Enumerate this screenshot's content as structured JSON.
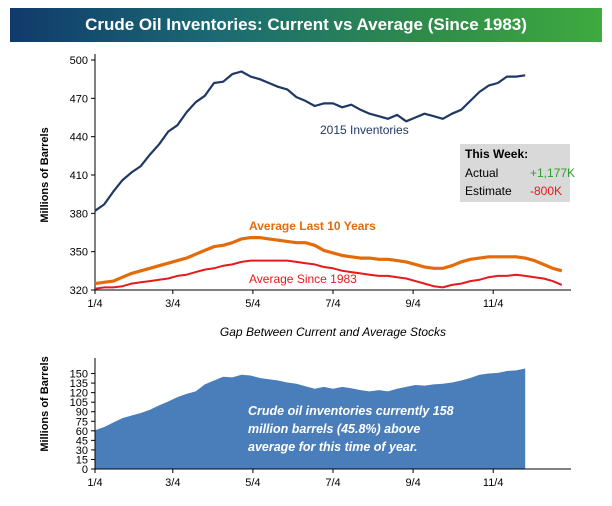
{
  "title": "Crude Oil Inventories: Current vs Average (Since 1983)",
  "colors": {
    "current": "#1f3864",
    "avg10": "#e36c09",
    "avg1983": "#e41a1c",
    "gap_fill": "#4a7ebb",
    "positive": "#2ca02c",
    "negative": "#e41a1c",
    "legend_box": "#d9d9d9"
  },
  "this_week": {
    "heading": "This Week:",
    "actual_label": "Actual",
    "actual_value": "+1,177K",
    "estimate_label": "Estimate",
    "estimate_value": "-800K"
  },
  "chart_data": [
    {
      "type": "line",
      "title": "Crude Oil Inventories: Current vs Average (Since 1983)",
      "ylabel": "Millions of Barrels",
      "xlabel": "",
      "ylim": [
        320,
        500
      ],
      "yticks": [
        320,
        350,
        380,
        410,
        440,
        470,
        500
      ],
      "xlim": [
        0,
        52
      ],
      "xticks": [
        0,
        8.5,
        17.25,
        26,
        34.75,
        43.5
      ],
      "xtick_labels": [
        "1/4",
        "3/4",
        "5/4",
        "7/4",
        "9/4",
        "11/4"
      ],
      "series": [
        {
          "name": "2015 Inventories",
          "label": "2015 Inventories",
          "x": [
            0,
            1,
            2,
            3,
            4,
            5,
            6,
            7,
            8,
            9,
            10,
            11,
            12,
            13,
            14,
            15,
            16,
            17,
            18,
            19,
            20,
            21,
            22,
            23,
            24,
            25,
            26,
            27,
            28,
            29,
            30,
            31,
            32,
            33,
            34,
            35,
            36,
            37,
            38,
            39,
            40,
            41,
            42,
            43,
            44,
            45,
            46,
            47
          ],
          "values": [
            382,
            387,
            397,
            406,
            412,
            417,
            426,
            434,
            444,
            449,
            459,
            467,
            472,
            482,
            483,
            489,
            491,
            487,
            485,
            482,
            479,
            477,
            471,
            468,
            464,
            466,
            466,
            463,
            465,
            461,
            458,
            456,
            454,
            457,
            452,
            455,
            458,
            456,
            454,
            458,
            461,
            468,
            475,
            480,
            482,
            487,
            487,
            488
          ]
        },
        {
          "name": "Average Last 10 Years",
          "label": "Average Last 10 Years",
          "x": [
            0,
            1,
            2,
            3,
            4,
            5,
            6,
            7,
            8,
            9,
            10,
            11,
            12,
            13,
            14,
            15,
            16,
            17,
            18,
            19,
            20,
            21,
            22,
            23,
            24,
            25,
            26,
            27,
            28,
            29,
            30,
            31,
            32,
            33,
            34,
            35,
            36,
            37,
            38,
            39,
            40,
            41,
            42,
            43,
            44,
            45,
            46,
            47,
            48,
            49,
            50,
            51
          ],
          "values": [
            325,
            326,
            327,
            330,
            333,
            335,
            337,
            339,
            341,
            343,
            345,
            348,
            351,
            354,
            355,
            357,
            360,
            361,
            361,
            360,
            359,
            358,
            357,
            357,
            355,
            351,
            349,
            347,
            346,
            345,
            345,
            344,
            344,
            343,
            342,
            340,
            338,
            337,
            337,
            339,
            342,
            344,
            345,
            346,
            346,
            346,
            346,
            345,
            343,
            340,
            337,
            335
          ]
        },
        {
          "name": "Average Since 1983",
          "label": "Average Since 1983",
          "x": [
            0,
            1,
            2,
            3,
            4,
            5,
            6,
            7,
            8,
            9,
            10,
            11,
            12,
            13,
            14,
            15,
            16,
            17,
            18,
            19,
            20,
            21,
            22,
            23,
            24,
            25,
            26,
            27,
            28,
            29,
            30,
            31,
            32,
            33,
            34,
            35,
            36,
            37,
            38,
            39,
            40,
            41,
            42,
            43,
            44,
            45,
            46,
            47,
            48,
            49,
            50,
            51
          ],
          "values": [
            321,
            322,
            322,
            323,
            325,
            326,
            327,
            328,
            329,
            331,
            332,
            334,
            336,
            337,
            339,
            340,
            342,
            343,
            343,
            343,
            343,
            343,
            342,
            341,
            340,
            338,
            337,
            335,
            334,
            333,
            332,
            331,
            331,
            330,
            329,
            327,
            325,
            323,
            322,
            324,
            325,
            327,
            328,
            330,
            331,
            331,
            332,
            331,
            330,
            329,
            327,
            324
          ]
        }
      ]
    },
    {
      "type": "area",
      "title": "Gap Between Current and Average Stocks",
      "ylabel": "Millions of Barrels",
      "xlabel": "",
      "ylim": [
        0,
        165
      ],
      "yticks": [
        0,
        15,
        30,
        45,
        60,
        75,
        90,
        105,
        120,
        135,
        150
      ],
      "xlim": [
        0,
        52
      ],
      "xticks": [
        0,
        8.5,
        17.25,
        26,
        34.75,
        43.5
      ],
      "xtick_labels": [
        "1/4",
        "3/4",
        "5/4",
        "7/4",
        "9/4",
        "11/4"
      ],
      "annotation": "Crude oil inventories currently 158 million barrels (45.8%) above average for this time of year.",
      "annotation_lines": [
        "Crude oil inventories currently 158",
        "million barrels (45.8%) above",
        "average for this time of year."
      ],
      "series": [
        {
          "name": "Gap",
          "x": [
            0,
            1,
            2,
            3,
            4,
            5,
            6,
            7,
            8,
            9,
            10,
            11,
            12,
            13,
            14,
            15,
            16,
            17,
            18,
            19,
            20,
            21,
            22,
            23,
            24,
            25,
            26,
            27,
            28,
            29,
            30,
            31,
            32,
            33,
            34,
            35,
            36,
            37,
            38,
            39,
            40,
            41,
            42,
            43,
            44,
            45,
            46,
            47
          ],
          "values": [
            61,
            66,
            73,
            80,
            84,
            88,
            93,
            100,
            106,
            113,
            118,
            122,
            133,
            139,
            145,
            144,
            148,
            147,
            143,
            141,
            139,
            136,
            134,
            130,
            126,
            129,
            126,
            129,
            127,
            124,
            122,
            124,
            122,
            126,
            129,
            132,
            131,
            133,
            134,
            136,
            139,
            143,
            148,
            150,
            151,
            154,
            155,
            158
          ]
        }
      ]
    }
  ]
}
